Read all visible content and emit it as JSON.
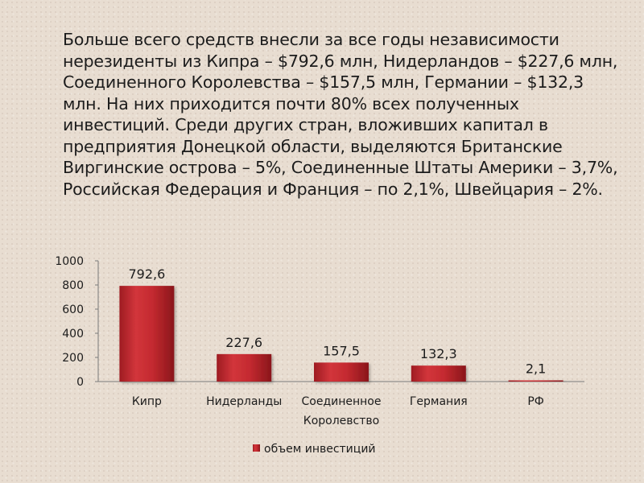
{
  "text": "Больше всего средств внесли за все годы независимости нерезиденты из Кипра – $792,6 млн, Нидерландов – $227,6 млн, Соединенного Королевства – $157,5 млн, Германии – $132,3 млн. На них приходится почти 80% всех полученных инвестиций. Среди других стран, вложивших капитал в предприятия Донецкой области, выделяются Британские Виргинские острова – 5%, Соединенные Штаты Америки – 3,7%, Российская Федерация и Франция – по 2,1%, Швейцария – 2%.",
  "colors": {
    "bar": "#c0272d",
    "bar_dark": "#8e1a1f",
    "bar_light": "#e05a5f"
  },
  "chart_data": {
    "type": "bar",
    "categories": [
      "Кипр",
      "Нидерланды",
      "Соединенное Королевство",
      "Германия",
      "РФ"
    ],
    "category_lines": [
      [
        "Кипр"
      ],
      [
        "Нидерланды"
      ],
      [
        "Соединенное",
        "Королевство"
      ],
      [
        "Германия"
      ],
      [
        "РФ"
      ]
    ],
    "series": [
      {
        "name": "объем инвестиций",
        "values": [
          792.6,
          227.6,
          157.5,
          132.3,
          2.1
        ]
      }
    ],
    "data_labels": [
      "792,6",
      "227,6",
      "157,5",
      "132,3",
      "2,1"
    ],
    "yticks": [
      0,
      200,
      400,
      600,
      800,
      1000
    ],
    "ylim": [
      0,
      1000
    ],
    "title": "",
    "xlabel": "",
    "ylabel": "",
    "legend": "bottom"
  }
}
